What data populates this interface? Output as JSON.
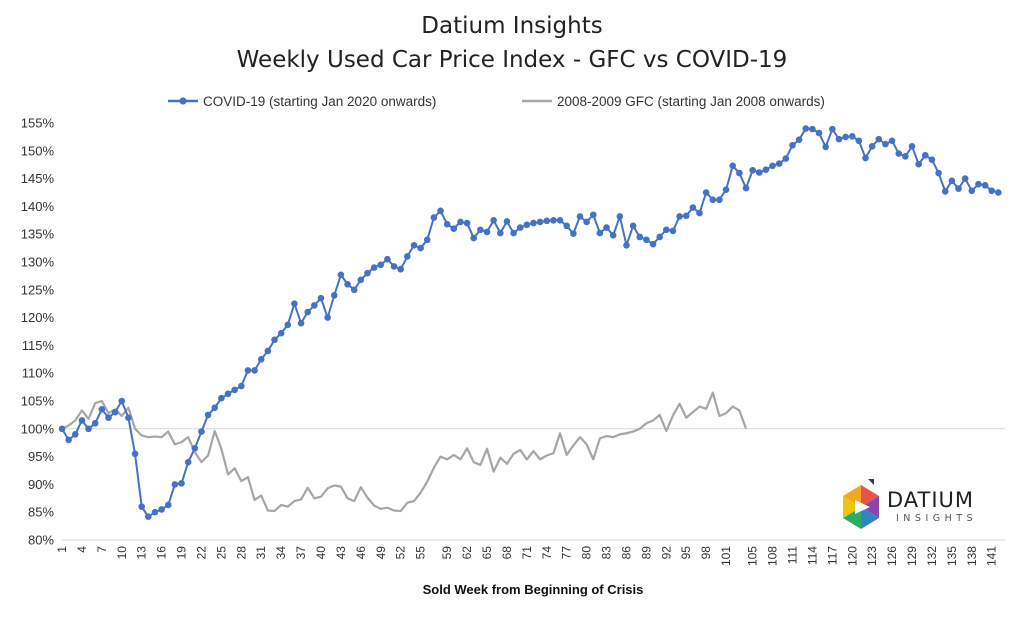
{
  "chart_data": {
    "type": "line",
    "title": "Datium Insights",
    "subtitle": "Weekly Used Car Price Index - GFC vs COVID-19",
    "xlabel": "Sold Week from Beginning of Crisis",
    "ylabel": "",
    "ylim": [
      80,
      155
    ],
    "yticks": [
      "80%",
      "85%",
      "90%",
      "95%",
      "100%",
      "105%",
      "110%",
      "115%",
      "120%",
      "125%",
      "130%",
      "135%",
      "140%",
      "145%",
      "150%",
      "155%"
    ],
    "xlim": [
      1,
      143
    ],
    "xticks": [
      "1",
      "4",
      "7",
      "10",
      "13",
      "16",
      "19",
      "22",
      "25",
      "28",
      "31",
      "34",
      "37",
      "40",
      "43",
      "46",
      "49",
      "52",
      "55",
      "59",
      "62",
      "65",
      "68",
      "71",
      "74",
      "77",
      "80",
      "83",
      "86",
      "89",
      "92",
      "95",
      "98",
      "101",
      "105",
      "108",
      "111",
      "114",
      "117",
      "120",
      "123",
      "126",
      "129",
      "132",
      "135",
      "138",
      "141"
    ],
    "grid": false,
    "reference_line": 100,
    "legend_position": "top",
    "series": [
      {
        "name": "COVID-19 (starting Jan 2020 onwards)",
        "color": "#4472C4",
        "marker": "circle",
        "values": [
          100,
          98,
          99,
          101.5,
          100,
          101,
          103.5,
          102,
          103,
          105,
          102,
          95.5,
          86,
          84.2,
          85,
          85.5,
          86.3,
          90,
          90.2,
          94,
          96.5,
          99.5,
          102.5,
          103.8,
          105.5,
          106.3,
          107,
          107.7,
          110.5,
          110.5,
          112.5,
          114,
          116,
          117.2,
          118.7,
          122.5,
          119,
          121,
          122.2,
          123.5,
          120,
          124,
          127.7,
          126,
          125,
          126.8,
          128,
          129,
          129.5,
          130.5,
          129.2,
          128.7,
          131,
          133,
          132.5,
          134,
          138,
          139.2,
          136.8,
          136,
          137.2,
          137,
          134.3,
          135.8,
          135.4,
          137.5,
          135.2,
          137.3,
          135.2,
          136.2,
          136.7,
          137,
          137.2,
          137.4,
          137.5,
          137.5,
          136.5,
          135.1,
          138.2,
          137.2,
          138.5,
          135.2,
          136.2,
          134.8,
          138.2,
          133,
          136.5,
          134.5,
          134,
          133.2,
          134.5,
          135.8,
          135.6,
          138.2,
          138.3,
          139.8,
          138.8,
          142.5,
          141.2,
          141.2,
          143,
          147.3,
          146,
          143.3,
          146.5,
          146.1,
          146.6,
          147.3,
          147.7,
          148.6,
          151,
          152,
          154,
          153.9,
          153.2,
          150.7,
          153.9,
          152.1,
          152.5,
          152.6,
          151.8,
          148.7,
          150.8,
          152.1,
          151.2,
          151.8,
          149.5,
          149,
          150.8,
          147.6,
          149.2,
          148.4,
          146,
          142.7,
          144.6,
          143.2,
          145,
          142.8,
          144,
          143.8,
          142.8,
          142.5
        ]
      },
      {
        "name": "2008-2009 GFC (starting Jan 2008 onwards)",
        "color": "#A6A6A6",
        "marker": "none",
        "values": [
          100,
          100.6,
          101.5,
          103.3,
          101.8,
          104.6,
          105,
          102.8,
          103.5,
          102.3,
          103.8,
          100,
          98.8,
          98.5,
          98.6,
          98.5,
          99.5,
          97.2,
          97.6,
          98.5,
          95.8,
          94,
          95.2,
          99.6,
          96.4,
          91.8,
          92.9,
          90.6,
          91.3,
          87.2,
          88,
          85.3,
          85.2,
          86.3,
          86,
          87,
          87.3,
          89.4,
          87.5,
          87.8,
          89.3,
          89.8,
          89.6,
          87.5,
          87,
          89.5,
          87.6,
          86.2,
          85.6,
          85.8,
          85.3,
          85.2,
          86.7,
          87,
          88.5,
          90.5,
          93,
          95,
          94.5,
          95.3,
          94.5,
          96.5,
          94,
          93.5,
          96.4,
          92.3,
          94.8,
          93.7,
          95.5,
          96.2,
          94.5,
          96,
          94.5,
          95.2,
          95.6,
          99.2,
          95.3,
          97,
          98.5,
          97.2,
          94.5,
          98.3,
          98.7,
          98.5,
          99,
          99.2,
          99.5,
          100,
          101,
          101.5,
          102.5,
          99.6,
          102.4,
          104.5,
          102,
          103,
          104,
          103.6,
          106.5,
          102.3,
          102.8,
          104,
          103.3,
          100
        ]
      }
    ],
    "legend": [
      "COVID-19 (starting Jan 2020 onwards)",
      "2008-2009 GFC (starting Jan 2008 onwards)"
    ]
  },
  "logo": {
    "name": "DATIUM",
    "tagline": "INSIGHTS"
  }
}
